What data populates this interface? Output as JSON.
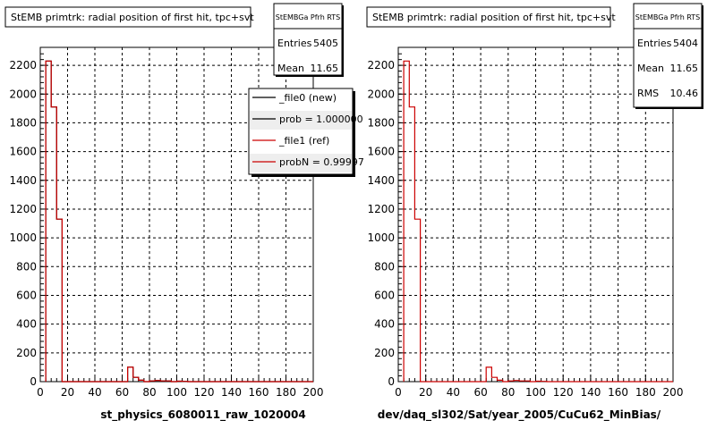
{
  "colors": {
    "new": "#000000",
    "ref": "#cc0000",
    "grid": "#000000",
    "frame": "#000000"
  },
  "chart_data": [
    {
      "type": "histogram",
      "title": "StEMB primtrk: radial position of first hit, tpc+svt",
      "xlabel": "st_physics_6080011_raw_1020004",
      "ylabel": "",
      "xlim": [
        0,
        200
      ],
      "ylim": [
        0,
        2300
      ],
      "xticks": [
        "0",
        "20",
        "40",
        "60",
        "80",
        "100",
        "120",
        "140",
        "160",
        "180",
        "200"
      ],
      "yticks": [
        "0",
        "200",
        "400",
        "600",
        "800",
        "1000",
        "1200",
        "1400",
        "1600",
        "1800",
        "2000",
        "2200"
      ],
      "grid": true,
      "stats": {
        "name": "StEMBGa Pfrh RTS",
        "rows": [
          {
            "label": "Entries",
            "value": "5405"
          },
          {
            "label": "Mean",
            "value": "11.65"
          }
        ]
      },
      "legend": {
        "position": "top-right",
        "entries": [
          {
            "label": "_file0 (new)",
            "color": "#000000"
          },
          {
            "label": "prob = 1.000000",
            "color": "#000000"
          },
          {
            "label": "_file1 (ref)",
            "color": "#cc0000"
          },
          {
            "label": "probN = 0.99997",
            "color": "#cc0000"
          }
        ]
      },
      "series": [
        {
          "name": "_file0 (new)",
          "color": "#000000",
          "bin_width": 4,
          "bins": [
            [
              4,
              2230
            ],
            [
              8,
              1910
            ],
            [
              12,
              1130
            ],
            [
              16,
              0
            ],
            [
              64,
              100
            ],
            [
              68,
              30
            ],
            [
              72,
              10
            ],
            [
              76,
              0
            ],
            [
              80,
              5
            ],
            [
              84,
              8
            ],
            [
              88,
              5
            ],
            [
              92,
              5
            ],
            [
              96,
              0
            ],
            [
              100,
              3
            ],
            [
              104,
              2
            ],
            [
              108,
              0
            ]
          ]
        },
        {
          "name": "_file1 (ref)",
          "color": "#cc0000",
          "bin_width": 4,
          "bins": [
            [
              4,
              2230
            ],
            [
              8,
              1910
            ],
            [
              12,
              1130
            ],
            [
              16,
              0
            ],
            [
              64,
              100
            ],
            [
              68,
              30
            ],
            [
              72,
              10
            ],
            [
              76,
              0
            ],
            [
              80,
              5
            ],
            [
              84,
              8
            ],
            [
              88,
              5
            ],
            [
              92,
              5
            ],
            [
              96,
              0
            ],
            [
              100,
              3
            ],
            [
              104,
              2
            ],
            [
              108,
              0
            ]
          ]
        }
      ]
    },
    {
      "type": "histogram",
      "title": "StEMB primtrk: radial position of first hit, tpc+svt",
      "xlabel": "dev/daq_sl302/Sat/year_2005/CuCu62_MinBias/",
      "ylabel": "",
      "xlim": [
        0,
        200
      ],
      "ylim": [
        0,
        2300
      ],
      "xticks": [
        "0",
        "20",
        "40",
        "60",
        "80",
        "100",
        "120",
        "140",
        "160",
        "180",
        "200"
      ],
      "yticks": [
        "0",
        "200",
        "400",
        "600",
        "800",
        "1000",
        "1200",
        "1400",
        "1600",
        "1800",
        "2000",
        "2200"
      ],
      "grid": true,
      "stats": {
        "name": "StEMBGa Pfrh RTS",
        "rows": [
          {
            "label": "Entries",
            "value": "5404"
          },
          {
            "label": "Mean",
            "value": "11.65"
          },
          {
            "label": "RMS",
            "value": "10.46"
          }
        ]
      },
      "series": [
        {
          "name": "",
          "color": "#cc0000",
          "bin_width": 4,
          "bins": [
            [
              4,
              2230
            ],
            [
              8,
              1910
            ],
            [
              12,
              1130
            ],
            [
              16,
              0
            ],
            [
              64,
              100
            ],
            [
              68,
              30
            ],
            [
              72,
              10
            ],
            [
              76,
              0
            ],
            [
              80,
              5
            ],
            [
              84,
              8
            ],
            [
              88,
              5
            ],
            [
              92,
              5
            ],
            [
              96,
              0
            ],
            [
              100,
              3
            ],
            [
              104,
              2
            ],
            [
              108,
              0
            ]
          ]
        }
      ]
    }
  ]
}
